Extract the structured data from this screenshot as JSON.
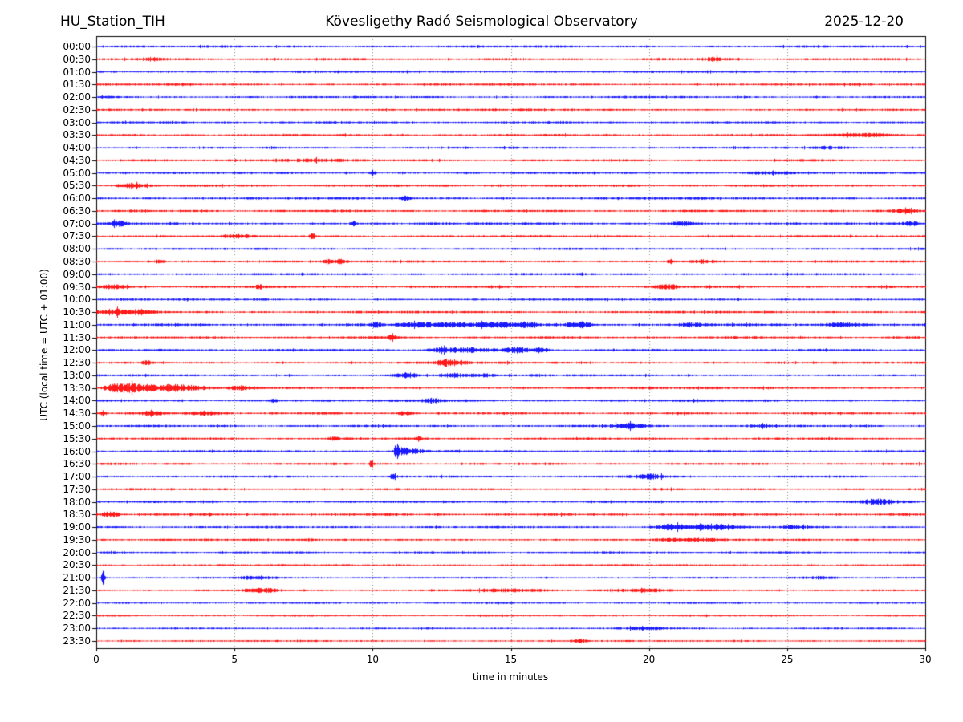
{
  "header": {
    "station": "HU_Station_TIH",
    "observatory": "Kövesligethy Radó Seismological Observatory",
    "date": "2025-12-20"
  },
  "axes": {
    "xlabel": "time in minutes",
    "ylabel": "UTC (local time = UTC + 01:00)",
    "xticks": [
      0,
      5,
      10,
      15,
      20,
      25,
      30
    ],
    "xlim": [
      0,
      30
    ],
    "grid": "vertical-dotted"
  },
  "colors": {
    "trace_blue": "#0000ff",
    "trace_red": "#ff0000",
    "grid": "#888888",
    "axis": "#000000"
  },
  "chart_data": {
    "type": "line",
    "subtype": "helicorder-seismogram",
    "minutes_per_row": 30,
    "title": "HU_Station_TIH — Kövesligethy Radó Seismological Observatory — 2025-12-20",
    "xlabel": "time in minutes",
    "ylabel": "UTC (local time = UTC + 01:00)",
    "rows": [
      {
        "time": "00:00",
        "color": "blue",
        "noise": 1.2,
        "events": []
      },
      {
        "time": "00:30",
        "color": "red",
        "noise": 1.2,
        "events": [
          {
            "t": 2.0,
            "amp": 1.4,
            "w": 0.3
          },
          {
            "t": 22.3,
            "amp": 1.4,
            "w": 0.3
          }
        ]
      },
      {
        "time": "01:00",
        "color": "blue",
        "noise": 1.15,
        "events": []
      },
      {
        "time": "01:30",
        "color": "red",
        "noise": 1.15,
        "events": []
      },
      {
        "time": "02:00",
        "color": "blue",
        "noise": 1.1,
        "events": []
      },
      {
        "time": "02:30",
        "color": "red",
        "noise": 1.15,
        "events": []
      },
      {
        "time": "03:00",
        "color": "blue",
        "noise": 1.1,
        "events": []
      },
      {
        "time": "03:30",
        "color": "red",
        "noise": 1.1,
        "events": [
          {
            "t": 27.8,
            "amp": 1.6,
            "w": 0.8
          }
        ]
      },
      {
        "time": "04:00",
        "color": "blue",
        "noise": 1.1,
        "events": [
          {
            "t": 26.5,
            "amp": 1.2,
            "w": 0.5
          }
        ]
      },
      {
        "time": "04:30",
        "color": "red",
        "noise": 1.2,
        "events": [
          {
            "t": 7.5,
            "amp": 1.2,
            "w": 1.0
          }
        ]
      },
      {
        "time": "05:00",
        "color": "blue",
        "noise": 1.1,
        "events": [
          {
            "t": 10.0,
            "amp": 2.5,
            "w": 0.08
          },
          {
            "t": 24.5,
            "amp": 1.4,
            "w": 0.6
          }
        ]
      },
      {
        "time": "05:30",
        "color": "red",
        "noise": 1.25,
        "events": [
          {
            "t": 1.2,
            "amp": 2.2,
            "w": 0.35
          }
        ]
      },
      {
        "time": "06:00",
        "color": "blue",
        "noise": 1.3,
        "events": [
          {
            "t": 11.2,
            "amp": 1.8,
            "w": 0.1
          }
        ]
      },
      {
        "time": "06:30",
        "color": "red",
        "noise": 1.25,
        "events": [
          {
            "t": 29.3,
            "amp": 2.8,
            "w": 0.25
          }
        ]
      },
      {
        "time": "07:00",
        "color": "blue",
        "noise": 1.2,
        "events": [
          {
            "t": 0.8,
            "amp": 2.0,
            "w": 0.25
          },
          {
            "t": 9.3,
            "amp": 4.0,
            "w": 0.07
          },
          {
            "t": 21.2,
            "amp": 1.8,
            "w": 0.4
          },
          {
            "t": 29.5,
            "amp": 2.0,
            "w": 0.2
          }
        ]
      },
      {
        "time": "07:30",
        "color": "red",
        "noise": 1.15,
        "events": [
          {
            "t": 5.2,
            "amp": 1.4,
            "w": 0.3
          },
          {
            "t": 7.8,
            "amp": 3.2,
            "w": 0.07
          }
        ]
      },
      {
        "time": "08:00",
        "color": "blue",
        "noise": 1.1,
        "events": []
      },
      {
        "time": "08:30",
        "color": "red",
        "noise": 1.2,
        "events": [
          {
            "t": 2.3,
            "amp": 2.2,
            "w": 0.12
          },
          {
            "t": 8.35,
            "amp": 2.8,
            "w": 0.09
          },
          {
            "t": 8.8,
            "amp": 1.8,
            "w": 0.15
          },
          {
            "t": 20.8,
            "amp": 2.2,
            "w": 0.1
          },
          {
            "t": 22.0,
            "amp": 1.6,
            "w": 0.3
          }
        ]
      },
      {
        "time": "09:00",
        "color": "blue",
        "noise": 1.15,
        "events": []
      },
      {
        "time": "09:30",
        "color": "red",
        "noise": 1.25,
        "events": [
          {
            "t": 0.5,
            "amp": 1.8,
            "w": 0.4
          },
          {
            "t": 5.9,
            "amp": 1.6,
            "w": 0.15
          },
          {
            "t": 20.7,
            "amp": 1.8,
            "w": 0.3
          }
        ]
      },
      {
        "time": "10:00",
        "color": "blue",
        "noise": 1.15,
        "events": []
      },
      {
        "time": "10:30",
        "color": "red",
        "noise": 1.25,
        "events": [
          {
            "t": 0.7,
            "amp": 2.6,
            "w": 0.4
          },
          {
            "t": 1.6,
            "amp": 1.8,
            "w": 0.3
          }
        ]
      },
      {
        "time": "11:00",
        "color": "blue",
        "noise": 1.3,
        "events": [
          {
            "t": 10.1,
            "amp": 2.8,
            "w": 0.12
          },
          {
            "t": 11.5,
            "amp": 1.8,
            "w": 0.5
          },
          {
            "t": 13.0,
            "amp": 2.0,
            "w": 0.8
          },
          {
            "t": 14.6,
            "amp": 2.6,
            "w": 0.4
          },
          {
            "t": 15.6,
            "amp": 2.6,
            "w": 0.25
          },
          {
            "t": 17.5,
            "amp": 2.8,
            "w": 0.3
          },
          {
            "t": 21.5,
            "amp": 1.8,
            "w": 0.4
          },
          {
            "t": 27.0,
            "amp": 1.8,
            "w": 0.5
          }
        ]
      },
      {
        "time": "11:30",
        "color": "red",
        "noise": 1.2,
        "events": [
          {
            "t": 10.7,
            "amp": 3.5,
            "w": 0.08
          }
        ]
      },
      {
        "time": "12:00",
        "color": "blue",
        "noise": 1.2,
        "events": [
          {
            "t": 12.5,
            "amp": 1.8,
            "w": 0.3
          },
          {
            "t": 13.4,
            "amp": 2.2,
            "w": 0.5
          },
          {
            "t": 15.2,
            "amp": 2.6,
            "w": 0.35
          },
          {
            "t": 16.1,
            "amp": 1.6,
            "w": 0.2
          }
        ]
      },
      {
        "time": "12:30",
        "color": "red",
        "noise": 1.2,
        "events": [
          {
            "t": 1.8,
            "amp": 2.2,
            "w": 0.12
          },
          {
            "t": 12.6,
            "amp": 2.6,
            "w": 0.25
          },
          {
            "t": 13.1,
            "amp": 1.6,
            "w": 0.3
          }
        ]
      },
      {
        "time": "13:00",
        "color": "blue",
        "noise": 1.2,
        "events": [
          {
            "t": 11.2,
            "amp": 2.6,
            "w": 0.3
          },
          {
            "t": 12.9,
            "amp": 1.8,
            "w": 0.3
          },
          {
            "t": 13.9,
            "amp": 1.6,
            "w": 0.25
          }
        ]
      },
      {
        "time": "13:30",
        "color": "red",
        "noise": 1.25,
        "events": [
          {
            "t": 0.5,
            "amp": 2.5,
            "w": 0.2
          },
          {
            "t": 1.0,
            "amp": 4.0,
            "w": 0.25
          },
          {
            "t": 1.6,
            "amp": 3.0,
            "w": 0.3
          },
          {
            "t": 2.4,
            "amp": 2.6,
            "w": 0.4
          },
          {
            "t": 3.3,
            "amp": 2.0,
            "w": 0.5
          },
          {
            "t": 5.3,
            "amp": 1.6,
            "w": 0.3
          }
        ]
      },
      {
        "time": "14:00",
        "color": "blue",
        "noise": 1.2,
        "events": [
          {
            "t": 6.4,
            "amp": 1.5,
            "w": 0.1
          },
          {
            "t": 12.1,
            "amp": 2.0,
            "w": 0.3
          }
        ]
      },
      {
        "time": "14:30",
        "color": "red",
        "noise": 1.2,
        "events": [
          {
            "t": 0.25,
            "amp": 2.4,
            "w": 0.07
          },
          {
            "t": 2.0,
            "amp": 1.6,
            "w": 0.3
          },
          {
            "t": 4.0,
            "amp": 1.6,
            "w": 0.5
          },
          {
            "t": 11.2,
            "amp": 2.0,
            "w": 0.2
          }
        ]
      },
      {
        "time": "15:00",
        "color": "blue",
        "noise": 1.15,
        "events": [
          {
            "t": 19.2,
            "amp": 2.4,
            "w": 0.4
          },
          {
            "t": 24.0,
            "amp": 1.4,
            "w": 0.3
          }
        ]
      },
      {
        "time": "15:30",
        "color": "red",
        "noise": 1.15,
        "events": [
          {
            "t": 8.6,
            "amp": 1.8,
            "w": 0.12
          },
          {
            "t": 11.7,
            "amp": 2.8,
            "w": 0.09
          }
        ]
      },
      {
        "time": "16:00",
        "color": "blue",
        "noise": 1.15,
        "events": [
          {
            "t": 10.85,
            "amp": 10.0,
            "w": 0.05
          },
          {
            "t": 11.1,
            "amp": 3.0,
            "w": 0.15
          },
          {
            "t": 11.5,
            "amp": 1.8,
            "w": 0.3
          }
        ]
      },
      {
        "time": "16:30",
        "color": "red",
        "noise": 1.15,
        "events": [
          {
            "t": 9.95,
            "amp": 3.6,
            "w": 0.06
          }
        ]
      },
      {
        "time": "17:00",
        "color": "blue",
        "noise": 1.15,
        "events": [
          {
            "t": 10.75,
            "amp": 3.2,
            "w": 0.08
          },
          {
            "t": 20.0,
            "amp": 2.2,
            "w": 0.35
          }
        ]
      },
      {
        "time": "17:30",
        "color": "red",
        "noise": 1.1,
        "events": []
      },
      {
        "time": "18:00",
        "color": "blue",
        "noise": 1.15,
        "events": [
          {
            "t": 28.3,
            "amp": 2.6,
            "w": 0.4
          }
        ]
      },
      {
        "time": "18:30",
        "color": "red",
        "noise": 1.3,
        "events": [
          {
            "t": 0.5,
            "amp": 2.4,
            "w": 0.25
          }
        ]
      },
      {
        "time": "19:00",
        "color": "blue",
        "noise": 1.15,
        "events": [
          {
            "t": 20.8,
            "amp": 2.6,
            "w": 0.4
          },
          {
            "t": 21.8,
            "amp": 2.0,
            "w": 0.4
          },
          {
            "t": 22.6,
            "amp": 2.2,
            "w": 0.4
          },
          {
            "t": 25.2,
            "amp": 1.4,
            "w": 0.3
          }
        ]
      },
      {
        "time": "19:30",
        "color": "red",
        "noise": 1.1,
        "events": [
          {
            "t": 21.5,
            "amp": 1.2,
            "w": 0.8
          }
        ]
      },
      {
        "time": "20:00",
        "color": "blue",
        "noise": 1.0,
        "events": []
      },
      {
        "time": "20:30",
        "color": "red",
        "noise": 0.95,
        "events": []
      },
      {
        "time": "21:00",
        "color": "blue",
        "noise": 0.95,
        "events": [
          {
            "t": 0.25,
            "amp": 7.0,
            "w": 0.05
          },
          {
            "t": 5.8,
            "amp": 1.3,
            "w": 0.5
          },
          {
            "t": 26.0,
            "amp": 1.2,
            "w": 0.6
          }
        ]
      },
      {
        "time": "21:30",
        "color": "red",
        "noise": 1.0,
        "events": [
          {
            "t": 6.0,
            "amp": 1.8,
            "w": 0.5
          },
          {
            "t": 15.0,
            "amp": 1.4,
            "w": 1.0
          },
          {
            "t": 19.5,
            "amp": 1.4,
            "w": 0.8
          }
        ]
      },
      {
        "time": "22:00",
        "color": "blue",
        "noise": 0.9,
        "events": []
      },
      {
        "time": "22:30",
        "color": "red",
        "noise": 0.9,
        "events": []
      },
      {
        "time": "23:00",
        "color": "blue",
        "noise": 0.95,
        "events": [
          {
            "t": 20.0,
            "amp": 1.2,
            "w": 0.5
          }
        ]
      },
      {
        "time": "23:30",
        "color": "red",
        "noise": 0.95,
        "events": [
          {
            "t": 17.5,
            "amp": 1.8,
            "w": 0.15
          }
        ]
      }
    ]
  }
}
